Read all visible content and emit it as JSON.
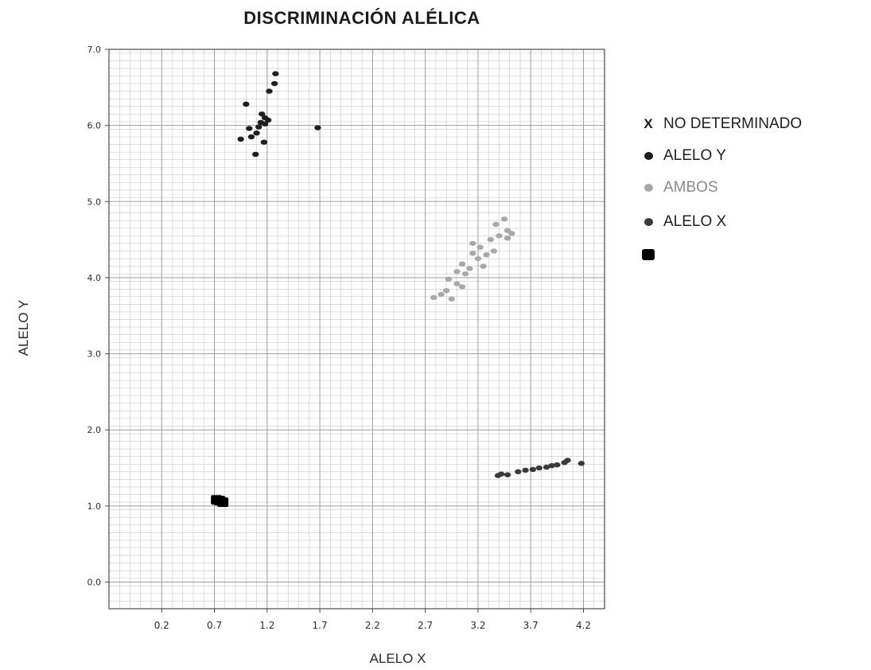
{
  "chart_data": {
    "type": "scatter",
    "title": "DISCRIMINACIÓN ALÉLICA",
    "xlabel": "ALELO X",
    "ylabel": "ALELO Y",
    "xlim": [
      -0.3,
      4.4
    ],
    "ylim": [
      -0.35,
      7.0
    ],
    "x_ticks": [
      "0.2",
      "0.7",
      "1.2",
      "1.7",
      "2.2",
      "2.7",
      "3.2",
      "3.7",
      "4.2"
    ],
    "x_tick_values": [
      0.2,
      0.7,
      1.2,
      1.7,
      2.2,
      2.7,
      3.2,
      3.7,
      4.2
    ],
    "y_ticks": [
      "0.0",
      "1.0",
      "2.0",
      "3.0",
      "4.0",
      "5.0",
      "6.0",
      "7.0"
    ],
    "y_tick_values": [
      0,
      1,
      2,
      3,
      4,
      5,
      6,
      7
    ],
    "grid": true,
    "legend_position": "right",
    "series": [
      {
        "name": "NO DETERMINADO",
        "marker": "x",
        "color": "#1a1a1a",
        "points": []
      },
      {
        "name": "ALELO Y",
        "marker": "dot",
        "color": "#1e1e1e",
        "points": [
          [
            1.28,
            6.68
          ],
          [
            1.27,
            6.55
          ],
          [
            1.22,
            6.45
          ],
          [
            1.0,
            6.28
          ],
          [
            1.15,
            6.15
          ],
          [
            1.18,
            6.1
          ],
          [
            1.21,
            6.07
          ],
          [
            1.14,
            6.04
          ],
          [
            1.18,
            6.02
          ],
          [
            1.12,
            5.98
          ],
          [
            1.03,
            5.96
          ],
          [
            1.1,
            5.9
          ],
          [
            1.05,
            5.85
          ],
          [
            0.95,
            5.82
          ],
          [
            1.17,
            5.78
          ],
          [
            1.09,
            5.62
          ],
          [
            1.68,
            5.97
          ]
        ]
      },
      {
        "name": "AMBOS",
        "marker": "dot",
        "color": "#a8a8a8",
        "points": [
          [
            3.45,
            4.77
          ],
          [
            3.37,
            4.7
          ],
          [
            3.48,
            4.62
          ],
          [
            3.52,
            4.58
          ],
          [
            3.4,
            4.55
          ],
          [
            3.48,
            4.52
          ],
          [
            3.32,
            4.5
          ],
          [
            3.15,
            4.45
          ],
          [
            3.22,
            4.4
          ],
          [
            3.35,
            4.35
          ],
          [
            3.15,
            4.32
          ],
          [
            3.28,
            4.3
          ],
          [
            3.2,
            4.25
          ],
          [
            3.05,
            4.18
          ],
          [
            3.25,
            4.15
          ],
          [
            3.12,
            4.12
          ],
          [
            3.0,
            4.08
          ],
          [
            3.08,
            4.05
          ],
          [
            2.92,
            3.98
          ],
          [
            3.0,
            3.92
          ],
          [
            3.05,
            3.88
          ],
          [
            2.9,
            3.83
          ],
          [
            2.85,
            3.78
          ],
          [
            2.78,
            3.74
          ],
          [
            2.95,
            3.72
          ]
        ]
      },
      {
        "name": "ALELO X",
        "marker": "dot",
        "color": "#3a3a3a",
        "points": [
          [
            3.39,
            1.4
          ],
          [
            3.42,
            1.42
          ],
          [
            3.48,
            1.41
          ],
          [
            3.58,
            1.45
          ],
          [
            3.65,
            1.47
          ],
          [
            3.72,
            1.48
          ],
          [
            3.78,
            1.5
          ],
          [
            3.85,
            1.51
          ],
          [
            3.9,
            1.53
          ],
          [
            3.95,
            1.54
          ],
          [
            4.02,
            1.57
          ],
          [
            4.05,
            1.6
          ],
          [
            4.18,
            1.56
          ]
        ]
      },
      {
        "name": "",
        "marker": "square",
        "color": "#000000",
        "points": [
          [
            0.72,
            1.08
          ],
          [
            0.78,
            1.05
          ],
          [
            0.75,
            1.07
          ]
        ]
      }
    ]
  }
}
